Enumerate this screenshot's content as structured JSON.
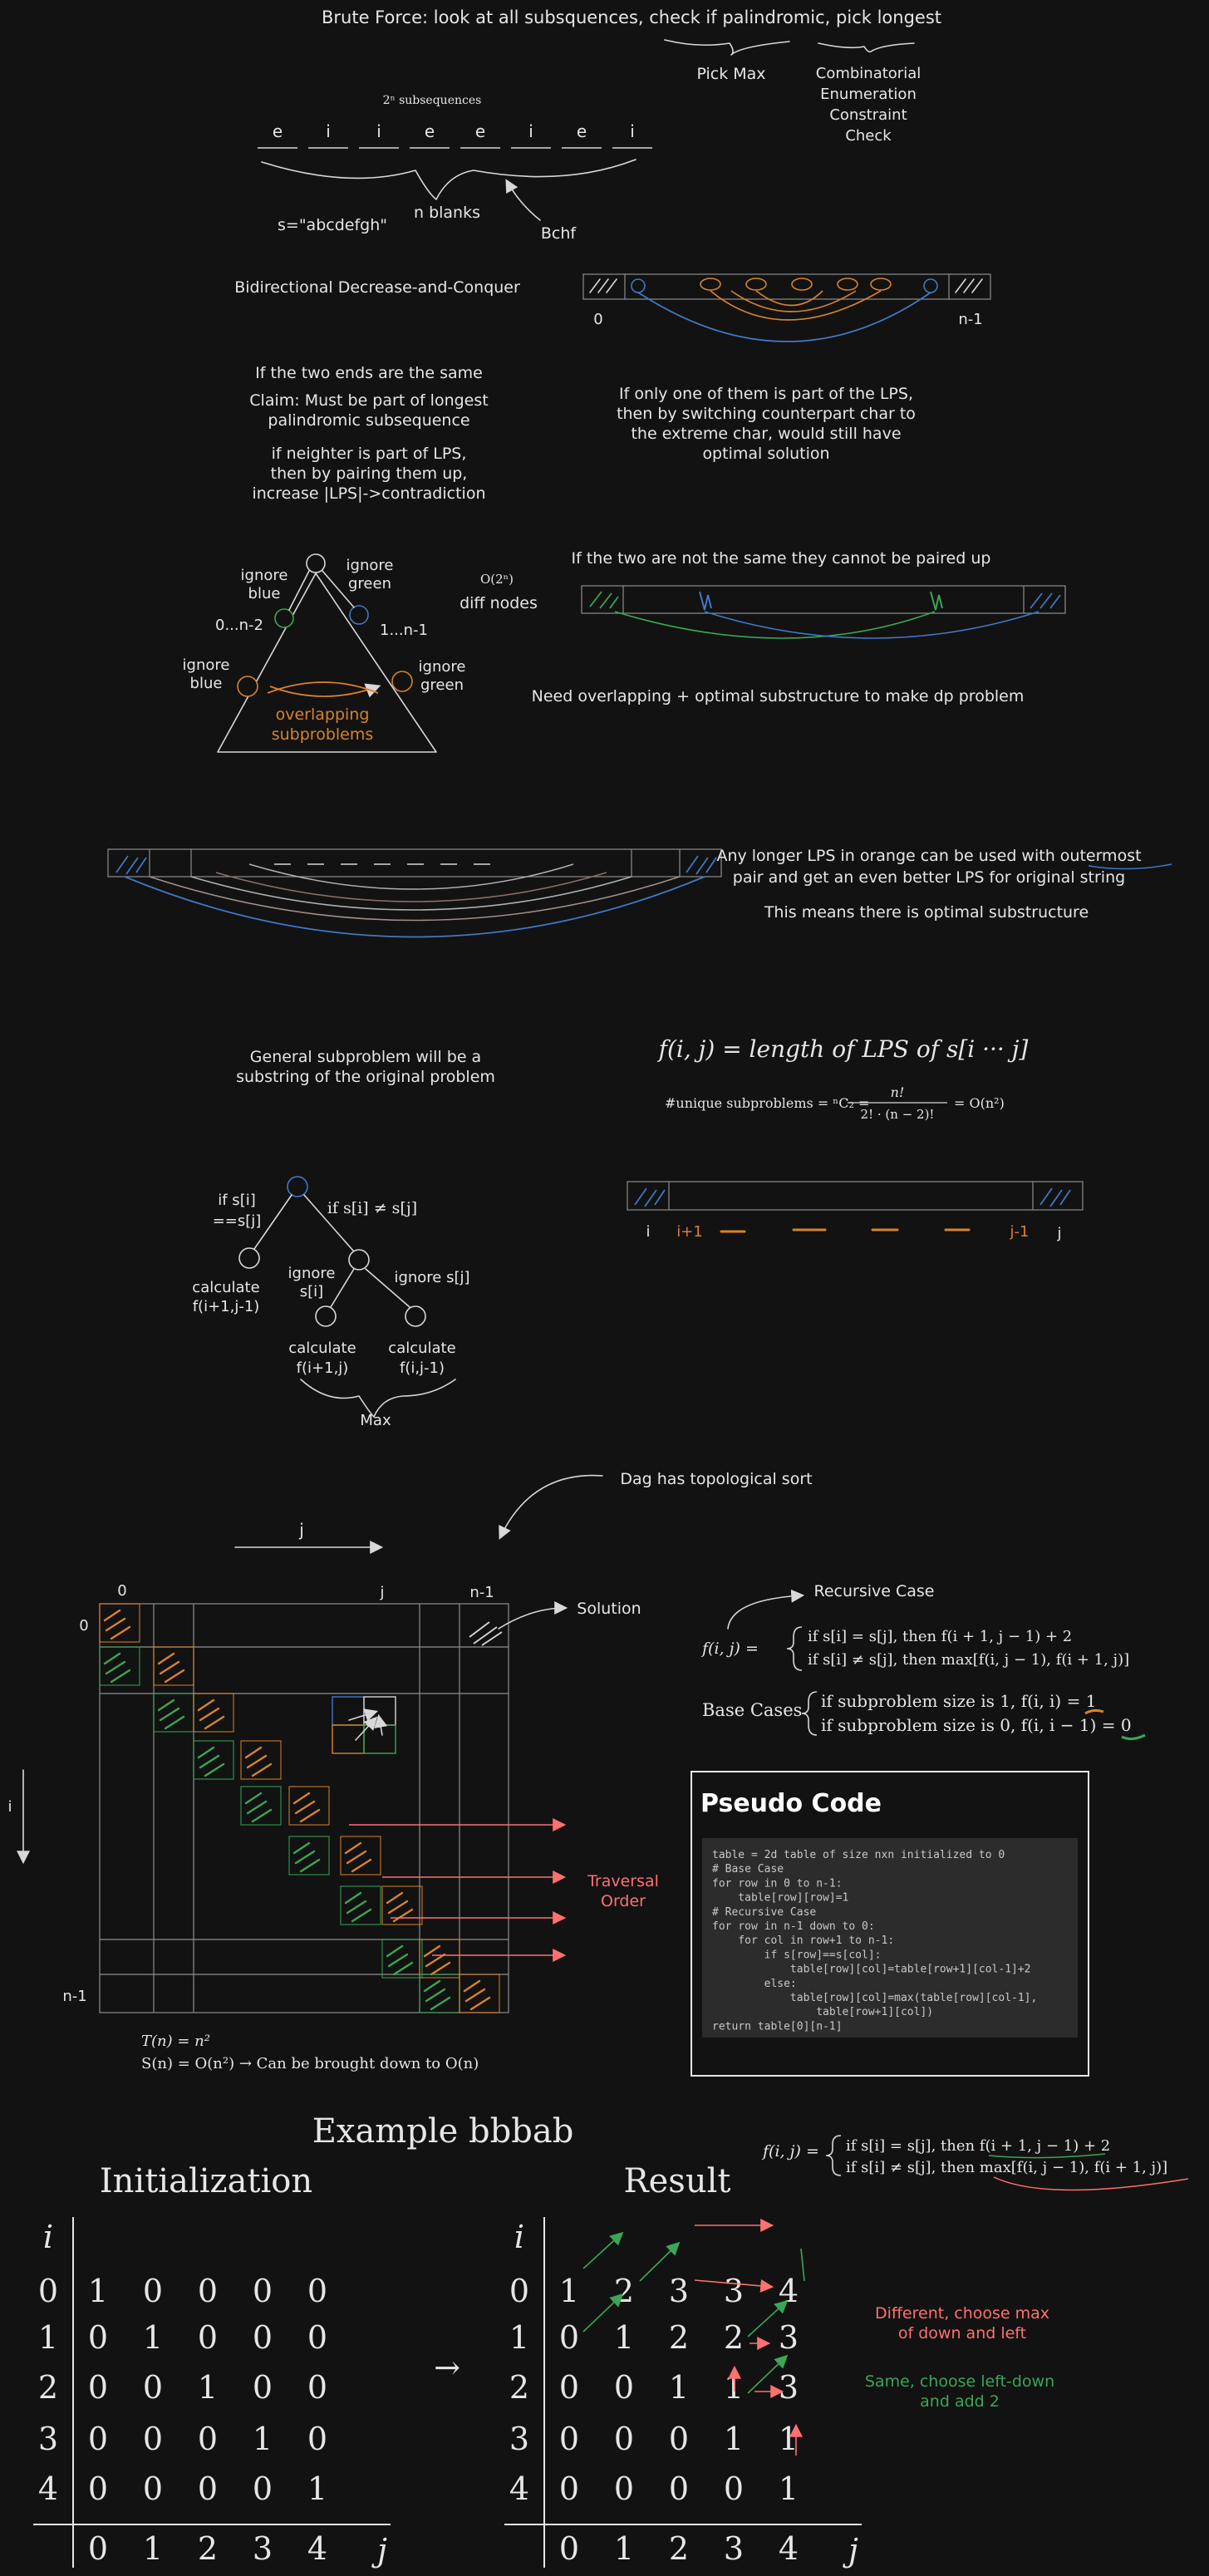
{
  "brute": {
    "title": "Brute Force: look at all subsquences, check if palindromic, pick longest",
    "pick_max": "Pick Max",
    "enum": [
      "Combinatorial",
      "Enumeration",
      "Constraint",
      "Check"
    ],
    "subseq_count": "2ⁿ subsequences",
    "letters": [
      "e",
      "i",
      "i",
      "e",
      "e",
      "i",
      "e",
      "i"
    ],
    "s_label": "s=\"abcdefgh\"",
    "n_blanks": "n blanks",
    "bchf": "Bchf"
  },
  "bidir": {
    "title": "Bidirectional Decrease-and-Conquer",
    "idx0": "0",
    "idxn": "n-1"
  },
  "claims": {
    "left": [
      "If the two ends are the same",
      "Claim: Must be part of longest",
      "palindromic subsequence",
      "if neighter is part of LPS,",
      "then by pairing them up,",
      "increase |LPS|->contradiction"
    ],
    "right": [
      "If only one of them is part of the LPS,",
      "then by switching counterpart char to",
      "the extreme char, would still have",
      "optimal solution"
    ]
  },
  "tree1": {
    "ignore_blue_1": [
      "ignore",
      "blue"
    ],
    "ignore_green_1": [
      "ignore",
      "green"
    ],
    "range_left": "0...n-2",
    "range_right": "1...n-1",
    "ignore_blue_2": [
      "ignore",
      "blue"
    ],
    "ignore_green_2": [
      "ignore",
      "green"
    ],
    "overlap": [
      "overlapping",
      "subproblems"
    ],
    "o2n": "O(2ⁿ)",
    "diff_nodes": "diff nodes"
  },
  "notsame": {
    "title": "If the two are not the same they cannot be paired up",
    "need": "Need overlapping + optimal substructure to make dp problem"
  },
  "optimal": {
    "lines": [
      "Any longer LPS in orange can be used with outermost",
      "pair and get an even better LPS for original string"
    ],
    "conclusion": "This means there is optimal substructure"
  },
  "general": {
    "lines": [
      "General subproblem will be a",
      "substring of the original problem"
    ],
    "fdef": "f(i, j) = length of LPS of s[i ··· j]",
    "unique_prefix": "#unique subproblems = ⁿC₂ =",
    "frac_num": "n!",
    "frac_den": "2! · (n − 2)!",
    "unique_suffix": "= O(n²)"
  },
  "tree2": {
    "if_eq": [
      "if s[i]",
      "==s[j]"
    ],
    "if_neq": "if s[i] ≠ s[j]",
    "calc_left": [
      "calculate",
      "f(i+1,j-1)"
    ],
    "ignore_si": [
      "ignore",
      "s[i]"
    ],
    "ignore_sj": "ignore s[j]",
    "calc_mid": [
      "calculate",
      "f(i+1,j)"
    ],
    "calc_right": [
      "calculate",
      "f(i,j-1)"
    ],
    "max": "Max"
  },
  "bar3": {
    "i": "i",
    "i1": "i+1",
    "j1": "j-1",
    "j": "j"
  },
  "dag": {
    "note": "Dag has topological sort",
    "j_arrow": "j",
    "col0": "0",
    "colj": "j",
    "coln": "n-1",
    "row0": "0",
    "rown": "n-1",
    "i_axis": "i",
    "solution": "Solution",
    "traversal": [
      "Traversal",
      "Order"
    ]
  },
  "recursive": {
    "label": "Recursive Case",
    "f_lhs": "f(i, j) =",
    "case1": "if s[i] = s[j], then f(i + 1, j − 1) + 2",
    "case2": "if s[i] ≠ s[j], then max[f(i, j − 1), f(i + 1, j)]",
    "base_label": "Base Cases",
    "base1": "if subproblem size is 1, f(i, i) = 1",
    "base2": "if subproblem size is 0, f(i, i − 1) = 0"
  },
  "complexity": {
    "t": "T(n) = n²",
    "s": "S(n) = O(n²)   →   Can be brought down to O(n)"
  },
  "pseudo": {
    "title": "Pseudo Code",
    "code": [
      "table = 2d table of size nxn initialized to 0",
      "# Base Case",
      "for row in 0 to n-1:",
      "    table[row][row]=1",
      "# Recursive Case",
      "for row in n-1 down to 0:",
      "    for col in row+1 to n-1:",
      "        if s[row]==s[col]:",
      "            table[row][col]=table[row+1][col-1]+2",
      "        else:",
      "            table[row][col]=max(table[row][col-1],",
      "                table[row+1][col])",
      "return table[0][n-1]"
    ]
  },
  "example": {
    "title": "Example bbbab",
    "init_title": "Initialization",
    "result_title": "Result",
    "i_label": "i",
    "j_label": "j",
    "row_labels": [
      "0",
      "1",
      "2",
      "3",
      "4"
    ],
    "col_labels": [
      "0",
      "1",
      "2",
      "3",
      "4"
    ],
    "init": [
      [
        "1",
        "0",
        "0",
        "0",
        "0"
      ],
      [
        "0",
        "1",
        "0",
        "0",
        "0"
      ],
      [
        "0",
        "0",
        "1",
        "0",
        "0"
      ],
      [
        "0",
        "0",
        "0",
        "1",
        "0"
      ],
      [
        "0",
        "0",
        "0",
        "0",
        "1"
      ]
    ],
    "result": [
      [
        "1",
        "2",
        "3",
        "3",
        "4"
      ],
      [
        "0",
        "1",
        "2",
        "2",
        "3"
      ],
      [
        "0",
        "0",
        "1",
        "1",
        "3"
      ],
      [
        "0",
        "0",
        "0",
        "1",
        "1"
      ],
      [
        "0",
        "0",
        "0",
        "0",
        "1"
      ]
    ],
    "arrow": "→",
    "f_lhs": "f(i, j) =",
    "case1": "if s[i] = s[j], then f(i + 1, j − 1) + 2",
    "case2": "if s[i] ≠ s[j], then max[f(i, j − 1), f(i + 1, j)]",
    "note_diff": [
      "Different, choose max",
      "of down and left"
    ],
    "note_same": [
      "Same, choose left-down",
      "and add 2"
    ]
  },
  "colors": {
    "background": "#121212",
    "orange": "#d9822b",
    "green": "#3aa655",
    "blue": "#3f78c2",
    "red": "#ff7070"
  }
}
